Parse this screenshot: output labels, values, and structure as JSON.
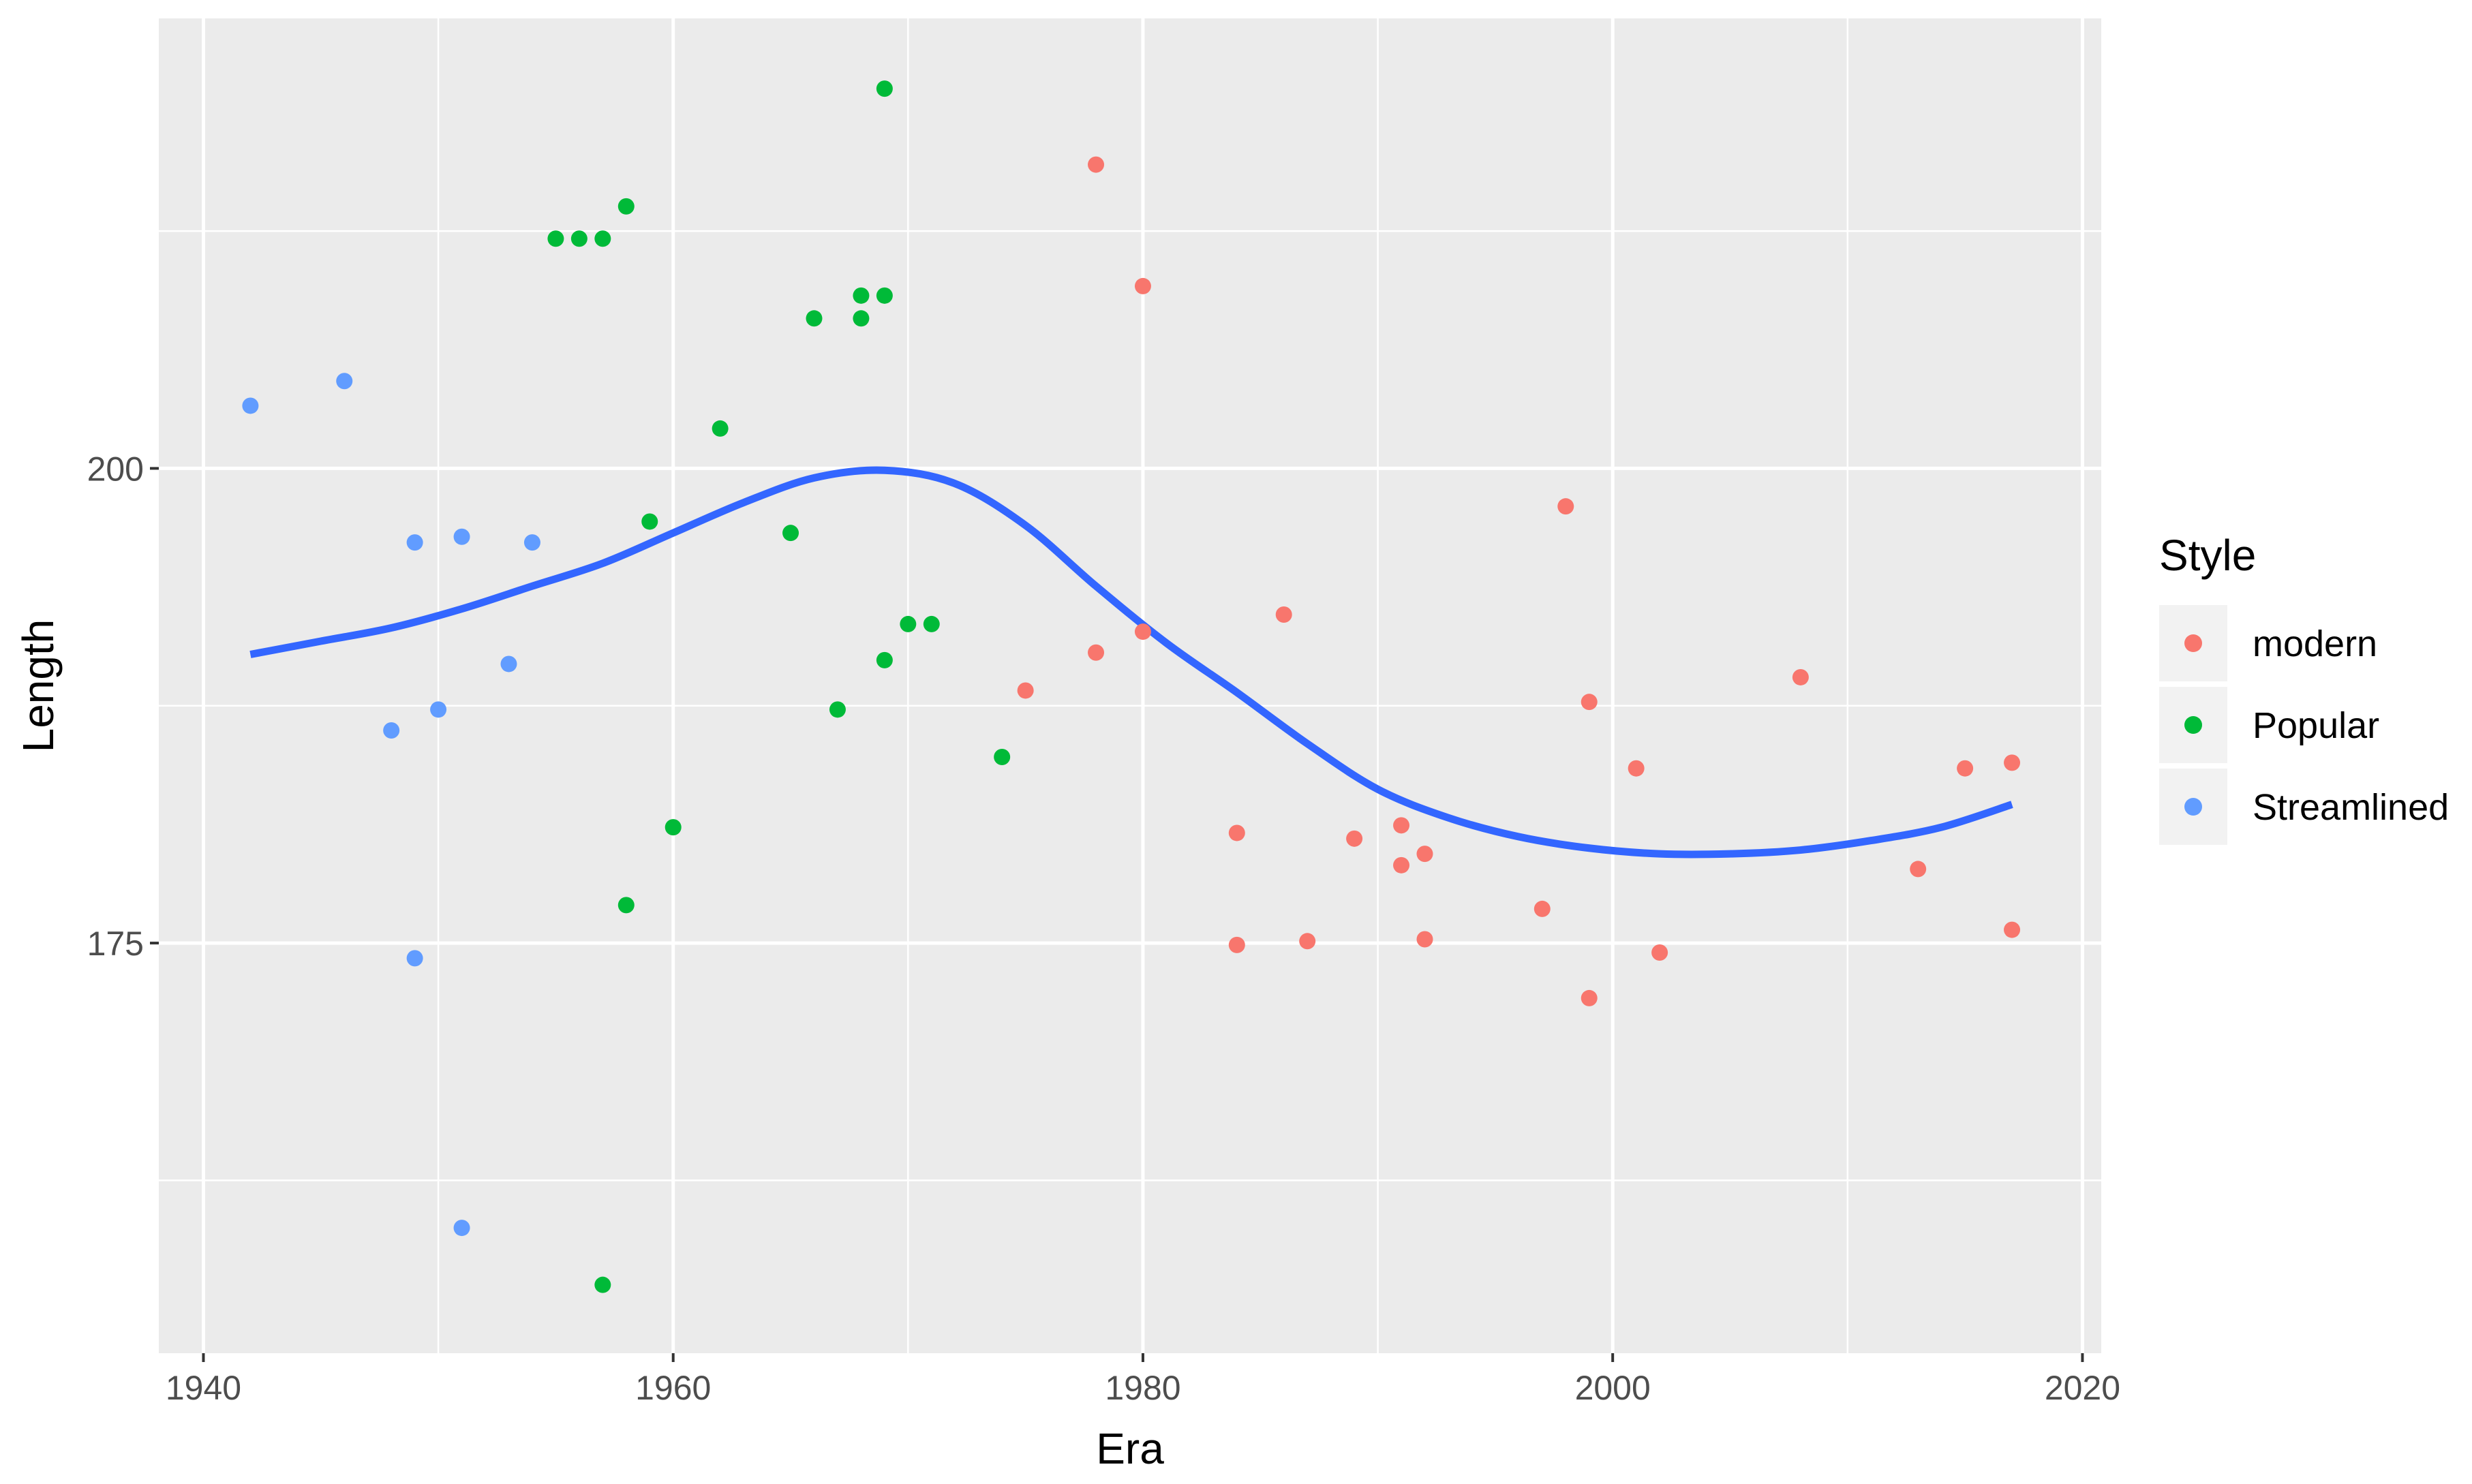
{
  "chart_data": {
    "type": "scatter",
    "xlabel": "Era",
    "ylabel": "Length",
    "xlim": [
      1938.1,
      2020.8
    ],
    "ylim": [
      153.4,
      223.7
    ],
    "x_ticks": [
      1940,
      1960,
      1980,
      2000,
      2020
    ],
    "x_tick_labels": [
      "1940",
      "1960",
      "1980",
      "2000",
      "2020"
    ],
    "y_ticks": [
      175,
      200
    ],
    "y_tick_labels": [
      "175",
      "200"
    ],
    "y_minor_gridlines": [
      162.5,
      187.5,
      212.5
    ],
    "x_minor_gridlines": [
      1950,
      1970,
      1990,
      2010
    ],
    "grid": true,
    "legend": {
      "title": "Style",
      "position": "right",
      "entries": [
        {
          "label": "modern",
          "color": "#F8766D"
        },
        {
          "label": "Popular",
          "color": "#00BA38"
        },
        {
          "label": "Streamlined",
          "color": "#619CFF"
        }
      ]
    },
    "series": [
      {
        "name": "modern",
        "color": "#F8766D",
        "points": [
          [
            1978,
            216
          ],
          [
            1980,
            209.6
          ],
          [
            1978,
            190.3
          ],
          [
            1980,
            191.4
          ],
          [
            1975,
            188.3
          ],
          [
            1986,
            192.3
          ],
          [
            1984,
            180.8
          ],
          [
            1984,
            174.9
          ],
          [
            1987,
            175.1
          ],
          [
            1989,
            180.5
          ],
          [
            1991,
            181.2
          ],
          [
            1991,
            179.1
          ],
          [
            1992,
            179.7
          ],
          [
            1992,
            175.2
          ],
          [
            1997,
            176.8
          ],
          [
            1998,
            198
          ],
          [
            1999,
            187.7
          ],
          [
            1999,
            172.1
          ],
          [
            2001,
            184.2
          ],
          [
            2002,
            174.5
          ],
          [
            2008,
            189
          ],
          [
            2013,
            178.9
          ],
          [
            2015,
            184.2
          ],
          [
            2017,
            184.5
          ],
          [
            2017,
            175.7
          ]
        ]
      },
      {
        "name": "Popular",
        "color": "#00BA38",
        "points": [
          [
            1969,
            220
          ],
          [
            1958,
            213.8
          ],
          [
            1955,
            212.1
          ],
          [
            1956,
            212.1
          ],
          [
            1957,
            212.1
          ],
          [
            1966,
            207.9
          ],
          [
            1968,
            207.9
          ],
          [
            1968,
            209.1
          ],
          [
            1969,
            209.1
          ],
          [
            1962,
            202.1
          ],
          [
            1959,
            197.2
          ],
          [
            1965,
            196.6
          ],
          [
            1970,
            191.8
          ],
          [
            1971,
            191.8
          ],
          [
            1969,
            189.9
          ],
          [
            1967,
            187.3
          ],
          [
            1974,
            184.8
          ],
          [
            1960,
            181.1
          ],
          [
            1958,
            177
          ],
          [
            1957,
            157
          ]
        ]
      },
      {
        "name": "Streamlined",
        "color": "#619CFF",
        "points": [
          [
            1942,
            203.3
          ],
          [
            1946,
            204.6
          ],
          [
            1949,
            196.1
          ],
          [
            1951,
            196.4
          ],
          [
            1954,
            196.1
          ],
          [
            1953,
            189.7
          ],
          [
            1950,
            187.3
          ],
          [
            1948,
            186.2
          ],
          [
            1949,
            174.2
          ],
          [
            1951,
            160
          ]
        ]
      }
    ],
    "smooth_line": {
      "color": "#3366FF",
      "points": [
        [
          1942,
          190.2
        ],
        [
          1945,
          190.9
        ],
        [
          1948,
          191.6
        ],
        [
          1951,
          192.6
        ],
        [
          1954,
          193.8
        ],
        [
          1957,
          195
        ],
        [
          1960,
          196.6
        ],
        [
          1963,
          198.2
        ],
        [
          1966,
          199.5
        ],
        [
          1969,
          199.9
        ],
        [
          1972,
          199.2
        ],
        [
          1975,
          197
        ],
        [
          1978,
          193.8
        ],
        [
          1981,
          190.8
        ],
        [
          1984,
          188.2
        ],
        [
          1987,
          185.5
        ],
        [
          1990,
          183.1
        ],
        [
          1993,
          181.6
        ],
        [
          1996,
          180.6
        ],
        [
          1999,
          180
        ],
        [
          2002,
          179.7
        ],
        [
          2005,
          179.7
        ],
        [
          2008,
          179.9
        ],
        [
          2011,
          180.4
        ],
        [
          2014,
          181.1
        ],
        [
          2017,
          182.3
        ]
      ]
    }
  }
}
